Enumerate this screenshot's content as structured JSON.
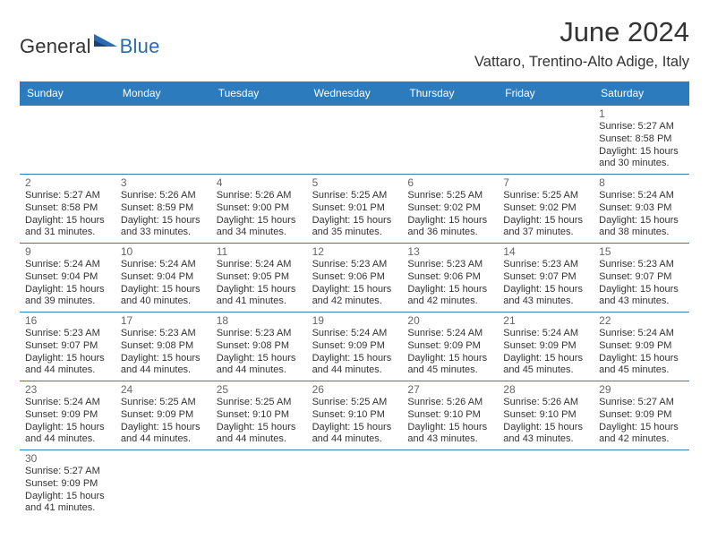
{
  "brand": {
    "part1": "General",
    "part2": "Blue"
  },
  "title": "June 2024",
  "subtitle": "Vattaro, Trentino-Alto Adige, Italy",
  "colors": {
    "accent": "#2b7bbd",
    "brand_blue": "#2b6bb2",
    "text": "#333333",
    "muted": "#666666",
    "bg": "#ffffff"
  },
  "typography": {
    "title_fontsize": 31,
    "subtitle_fontsize": 16.5,
    "dow_fontsize": 12,
    "daynum_fontsize": 12,
    "body_fontsize": 11
  },
  "calendar": {
    "days_of_week": [
      "Sunday",
      "Monday",
      "Tuesday",
      "Wednesday",
      "Thursday",
      "Friday",
      "Saturday"
    ],
    "start_weekday_index": 6,
    "weeks": [
      [
        null,
        null,
        null,
        null,
        null,
        null,
        {
          "n": 1,
          "sunrise": "5:27 AM",
          "sunset": "8:58 PM",
          "daylight_h": 15,
          "daylight_m": 30
        }
      ],
      [
        {
          "n": 2,
          "sunrise": "5:27 AM",
          "sunset": "8:58 PM",
          "daylight_h": 15,
          "daylight_m": 31
        },
        {
          "n": 3,
          "sunrise": "5:26 AM",
          "sunset": "8:59 PM",
          "daylight_h": 15,
          "daylight_m": 33
        },
        {
          "n": 4,
          "sunrise": "5:26 AM",
          "sunset": "9:00 PM",
          "daylight_h": 15,
          "daylight_m": 34
        },
        {
          "n": 5,
          "sunrise": "5:25 AM",
          "sunset": "9:01 PM",
          "daylight_h": 15,
          "daylight_m": 35
        },
        {
          "n": 6,
          "sunrise": "5:25 AM",
          "sunset": "9:02 PM",
          "daylight_h": 15,
          "daylight_m": 36
        },
        {
          "n": 7,
          "sunrise": "5:25 AM",
          "sunset": "9:02 PM",
          "daylight_h": 15,
          "daylight_m": 37
        },
        {
          "n": 8,
          "sunrise": "5:24 AM",
          "sunset": "9:03 PM",
          "daylight_h": 15,
          "daylight_m": 38
        }
      ],
      [
        {
          "n": 9,
          "sunrise": "5:24 AM",
          "sunset": "9:04 PM",
          "daylight_h": 15,
          "daylight_m": 39
        },
        {
          "n": 10,
          "sunrise": "5:24 AM",
          "sunset": "9:04 PM",
          "daylight_h": 15,
          "daylight_m": 40
        },
        {
          "n": 11,
          "sunrise": "5:24 AM",
          "sunset": "9:05 PM",
          "daylight_h": 15,
          "daylight_m": 41
        },
        {
          "n": 12,
          "sunrise": "5:23 AM",
          "sunset": "9:06 PM",
          "daylight_h": 15,
          "daylight_m": 42
        },
        {
          "n": 13,
          "sunrise": "5:23 AM",
          "sunset": "9:06 PM",
          "daylight_h": 15,
          "daylight_m": 42
        },
        {
          "n": 14,
          "sunrise": "5:23 AM",
          "sunset": "9:07 PM",
          "daylight_h": 15,
          "daylight_m": 43
        },
        {
          "n": 15,
          "sunrise": "5:23 AM",
          "sunset": "9:07 PM",
          "daylight_h": 15,
          "daylight_m": 43
        }
      ],
      [
        {
          "n": 16,
          "sunrise": "5:23 AM",
          "sunset": "9:07 PM",
          "daylight_h": 15,
          "daylight_m": 44
        },
        {
          "n": 17,
          "sunrise": "5:23 AM",
          "sunset": "9:08 PM",
          "daylight_h": 15,
          "daylight_m": 44
        },
        {
          "n": 18,
          "sunrise": "5:23 AM",
          "sunset": "9:08 PM",
          "daylight_h": 15,
          "daylight_m": 44
        },
        {
          "n": 19,
          "sunrise": "5:24 AM",
          "sunset": "9:09 PM",
          "daylight_h": 15,
          "daylight_m": 44
        },
        {
          "n": 20,
          "sunrise": "5:24 AM",
          "sunset": "9:09 PM",
          "daylight_h": 15,
          "daylight_m": 45
        },
        {
          "n": 21,
          "sunrise": "5:24 AM",
          "sunset": "9:09 PM",
          "daylight_h": 15,
          "daylight_m": 45
        },
        {
          "n": 22,
          "sunrise": "5:24 AM",
          "sunset": "9:09 PM",
          "daylight_h": 15,
          "daylight_m": 45
        }
      ],
      [
        {
          "n": 23,
          "sunrise": "5:24 AM",
          "sunset": "9:09 PM",
          "daylight_h": 15,
          "daylight_m": 44
        },
        {
          "n": 24,
          "sunrise": "5:25 AM",
          "sunset": "9:09 PM",
          "daylight_h": 15,
          "daylight_m": 44
        },
        {
          "n": 25,
          "sunrise": "5:25 AM",
          "sunset": "9:10 PM",
          "daylight_h": 15,
          "daylight_m": 44
        },
        {
          "n": 26,
          "sunrise": "5:25 AM",
          "sunset": "9:10 PM",
          "daylight_h": 15,
          "daylight_m": 44
        },
        {
          "n": 27,
          "sunrise": "5:26 AM",
          "sunset": "9:10 PM",
          "daylight_h": 15,
          "daylight_m": 43
        },
        {
          "n": 28,
          "sunrise": "5:26 AM",
          "sunset": "9:10 PM",
          "daylight_h": 15,
          "daylight_m": 43
        },
        {
          "n": 29,
          "sunrise": "5:27 AM",
          "sunset": "9:09 PM",
          "daylight_h": 15,
          "daylight_m": 42
        }
      ],
      [
        {
          "n": 30,
          "sunrise": "5:27 AM",
          "sunset": "9:09 PM",
          "daylight_h": 15,
          "daylight_m": 41
        },
        null,
        null,
        null,
        null,
        null,
        null
      ]
    ]
  },
  "labels": {
    "sunrise_prefix": "Sunrise: ",
    "sunset_prefix": "Sunset: ",
    "daylight_prefix": "Daylight: ",
    "hours_word": " hours",
    "and_word": "and ",
    "minutes_word": " minutes."
  }
}
